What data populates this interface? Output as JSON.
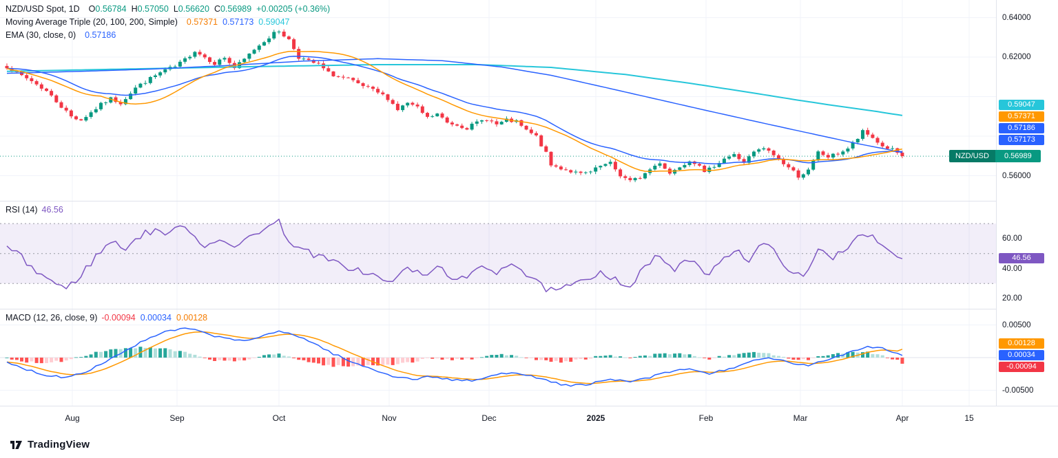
{
  "legend": {
    "price": {
      "symbol": "NZD/USD Spot, 1D",
      "o_label": "O",
      "o": "0.56784",
      "h_label": "H",
      "h": "0.57050",
      "l_label": "L",
      "l": "0.56620",
      "c_label": "C",
      "c": "0.56989",
      "change": "+0.00205 (+0.36%)",
      "ma_triple_label": "Moving Average Triple (20, 100, 200, Simple)",
      "ma20": "0.57371",
      "ma100": "0.57173",
      "ma200": "0.59047",
      "ema_label": "EMA (30, close, 0)",
      "ema": "0.57186"
    },
    "rsi": {
      "label": "RSI (14)",
      "value": "46.56"
    },
    "macd": {
      "label": "MACD (12, 26, close, 9)",
      "hist": "-0.00094",
      "macd": "0.00034",
      "signal": "0.00128"
    }
  },
  "axis": {
    "price_ticks": [
      {
        "label": "0.64000",
        "value": 0.64
      },
      {
        "label": "0.62000",
        "value": 0.62
      },
      {
        "label": "0.56000",
        "value": 0.56
      }
    ],
    "price_badges": [
      {
        "label": "0.59047",
        "color": "#26C6DA"
      },
      {
        "label": "0.57371",
        "color": "#FF9800"
      },
      {
        "label": "0.57186",
        "color": "#2962FF"
      },
      {
        "label": "0.57173",
        "color": "#2962FF"
      }
    ],
    "symbol_badge": {
      "symbol": "NZD/USD",
      "label": "0.56989",
      "color": "#089981",
      "dark": "#067A66",
      "value": 0.56989
    },
    "rsi_ticks": [
      {
        "label": "60.00",
        "value": 60
      },
      {
        "label": "40.00",
        "value": 40
      },
      {
        "label": "20.00",
        "value": 20
      }
    ],
    "rsi_badge": {
      "label": "46.56",
      "color": "#7E57C2",
      "value": 46.56
    },
    "macd_ticks": [
      {
        "label": "0.00500",
        "value": 0.005
      },
      {
        "label": "-0.00500",
        "value": -0.005
      }
    ],
    "macd_badges": [
      {
        "label": "0.00128",
        "color": "#FF9800",
        "value": 0.00128
      },
      {
        "label": "0.00034",
        "color": "#2962FF",
        "value": 0.00034
      },
      {
        "label": "-0.00094",
        "color": "#F23645",
        "value": -0.00094
      }
    ]
  },
  "time_axis": {
    "labels": [
      {
        "t": "Aug"
      },
      {
        "t": "Sep"
      },
      {
        "t": "Oct"
      },
      {
        "t": "Nov"
      },
      {
        "t": "Dec"
      },
      {
        "t": "2025",
        "major": true
      },
      {
        "t": "Feb"
      },
      {
        "t": "Mar"
      },
      {
        "t": "Apr"
      },
      {
        "t": "15"
      }
    ]
  },
  "branding": {
    "logo_text": "TradingView"
  },
  "chart_data": {
    "type": "candlestick",
    "symbol": "NZD/USD",
    "market": "Spot",
    "interval": "1D",
    "title": "NZD/USD Spot, 1D with Moving Average Triple (20,100,200), EMA 30, RSI 14, MACD (12,26,9)",
    "last_bar": {
      "open": 0.56784,
      "high": 0.5705,
      "low": 0.5662,
      "close": 0.56989,
      "change": 0.00205,
      "change_pct": 0.36
    },
    "price_pane": {
      "ylim": [
        0.548,
        0.6475
      ],
      "last_price": 0.56989,
      "num_candles": 182,
      "up_color": "#089981",
      "down_color": "#F23645",
      "price_line_color": "#089981",
      "close_anchors": [
        [
          0,
          0.6152
        ],
        [
          2,
          0.6118
        ],
        [
          5,
          0.608
        ],
        [
          8,
          0.6028
        ],
        [
          11,
          0.595
        ],
        [
          13,
          0.59
        ],
        [
          15,
          0.5882
        ],
        [
          17,
          0.592
        ],
        [
          19,
          0.596
        ],
        [
          21,
          0.599
        ],
        [
          23,
          0.5968
        ],
        [
          26,
          0.6045
        ],
        [
          29,
          0.6092
        ],
        [
          32,
          0.6135
        ],
        [
          34,
          0.615
        ],
        [
          36,
          0.6188
        ],
        [
          38,
          0.6232
        ],
        [
          40,
          0.62
        ],
        [
          42,
          0.6168
        ],
        [
          44,
          0.6198
        ],
        [
          46,
          0.6145
        ],
        [
          48,
          0.6188
        ],
        [
          50,
          0.624
        ],
        [
          52,
          0.6282
        ],
        [
          54,
          0.632
        ],
        [
          55,
          0.6332
        ],
        [
          56,
          0.631
        ],
        [
          57,
          0.6288
        ],
        [
          59,
          0.62
        ],
        [
          61,
          0.6178
        ],
        [
          63,
          0.6162
        ],
        [
          65,
          0.612
        ],
        [
          67,
          0.61
        ],
        [
          69,
          0.6088
        ],
        [
          71,
          0.6062
        ],
        [
          73,
          0.6042
        ],
        [
          75,
          0.602
        ],
        [
          77,
          0.5992
        ],
        [
          79,
          0.5935
        ],
        [
          81,
          0.5968
        ],
        [
          83,
          0.5942
        ],
        [
          85,
          0.5892
        ],
        [
          87,
          0.5912
        ],
        [
          89,
          0.5868
        ],
        [
          91,
          0.5858
        ],
        [
          93,
          0.5842
        ],
        [
          95,
          0.5868
        ],
        [
          97,
          0.5888
        ],
        [
          99,
          0.5858
        ],
        [
          101,
          0.588
        ],
        [
          103,
          0.5872
        ],
        [
          105,
          0.5828
        ],
        [
          107,
          0.5798
        ],
        [
          109,
          0.5712
        ],
        [
          110,
          0.5652
        ],
        [
          112,
          0.5638
        ],
        [
          114,
          0.5622
        ],
        [
          116,
          0.5608
        ],
        [
          118,
          0.5618
        ],
        [
          120,
          0.5648
        ],
        [
          122,
          0.5662
        ],
        [
          124,
          0.5602
        ],
        [
          126,
          0.5572
        ],
        [
          128,
          0.5592
        ],
        [
          130,
          0.5632
        ],
        [
          132,
          0.5668
        ],
        [
          134,
          0.5612
        ],
        [
          136,
          0.5648
        ],
        [
          138,
          0.5678
        ],
        [
          140,
          0.5658
        ],
        [
          141,
          0.5612
        ],
        [
          143,
          0.5652
        ],
        [
          145,
          0.5688
        ],
        [
          147,
          0.5705
        ],
        [
          149,
          0.5668
        ],
        [
          151,
          0.5718
        ],
        [
          153,
          0.5738
        ],
        [
          155,
          0.5705
        ],
        [
          157,
          0.5662
        ],
        [
          159,
          0.5622
        ],
        [
          160,
          0.5598
        ],
        [
          162,
          0.5625
        ],
        [
          164,
          0.5718
        ],
        [
          166,
          0.5695
        ],
        [
          168,
          0.5712
        ],
        [
          170,
          0.5738
        ],
        [
          172,
          0.5788
        ],
        [
          173,
          0.5822
        ],
        [
          175,
          0.5792
        ],
        [
          177,
          0.5748
        ],
        [
          179,
          0.5732
        ],
        [
          181,
          0.56989
        ]
      ],
      "overlays": [
        {
          "name": "SMA20",
          "period": 20,
          "color": "#FF9800",
          "last": 0.57371
        },
        {
          "name": "SMA100",
          "period": 100,
          "color": "#2962FF",
          "last": 0.57173,
          "anchors": [
            [
              0,
              0.6118
            ],
            [
              15,
              0.6128
            ],
            [
              30,
              0.614
            ],
            [
              45,
              0.6158
            ],
            [
              60,
              0.618
            ],
            [
              75,
              0.6192
            ],
            [
              88,
              0.6182
            ],
            [
              100,
              0.615
            ],
            [
              110,
              0.6108
            ],
            [
              120,
              0.6052
            ],
            [
              130,
              0.5995
            ],
            [
              140,
              0.5938
            ],
            [
              150,
              0.5882
            ],
            [
              158,
              0.5838
            ],
            [
              165,
              0.58
            ],
            [
              172,
              0.5762
            ],
            [
              177,
              0.5738
            ],
            [
              181,
              0.57173
            ]
          ]
        },
        {
          "name": "SMA200",
          "period": 200,
          "color": "#26C6DA",
          "last": 0.59047,
          "anchors": [
            [
              0,
              0.6128
            ],
            [
              25,
              0.614
            ],
            [
              50,
              0.6152
            ],
            [
              75,
              0.6162
            ],
            [
              95,
              0.6162
            ],
            [
              110,
              0.6148
            ],
            [
              125,
              0.6112
            ],
            [
              138,
              0.6068
            ],
            [
              150,
              0.6022
            ],
            [
              160,
              0.5982
            ],
            [
              168,
              0.5952
            ],
            [
              175,
              0.5928
            ],
            [
              181,
              0.59047
            ]
          ]
        },
        {
          "name": "EMA30",
          "period": 30,
          "color": "#2962FF",
          "last": 0.57186
        }
      ]
    },
    "rsi_pane": {
      "period": 14,
      "value": 46.56,
      "color": "#7E57C2",
      "ylim": [
        15,
        82
      ],
      "bands": [
        70,
        50,
        30
      ],
      "band_fill": "rgba(126,87,194,0.10)",
      "anchors": [
        [
          0,
          55
        ],
        [
          3,
          47
        ],
        [
          6,
          38
        ],
        [
          9,
          32
        ],
        [
          12,
          26
        ],
        [
          15,
          36
        ],
        [
          18,
          48
        ],
        [
          21,
          58
        ],
        [
          24,
          54
        ],
        [
          27,
          62
        ],
        [
          30,
          66
        ],
        [
          33,
          63
        ],
        [
          36,
          70
        ],
        [
          38,
          61
        ],
        [
          40,
          55
        ],
        [
          43,
          61
        ],
        [
          46,
          52
        ],
        [
          49,
          62
        ],
        [
          52,
          67
        ],
        [
          55,
          71
        ],
        [
          57,
          59
        ],
        [
          60,
          52
        ],
        [
          63,
          48
        ],
        [
          66,
          44
        ],
        [
          69,
          41
        ],
        [
          72,
          38
        ],
        [
          75,
          34
        ],
        [
          78,
          30
        ],
        [
          81,
          42
        ],
        [
          84,
          34
        ],
        [
          87,
          41
        ],
        [
          90,
          35
        ],
        [
          93,
          32
        ],
        [
          96,
          42
        ],
        [
          99,
          38
        ],
        [
          102,
          45
        ],
        [
          105,
          36
        ],
        [
          108,
          28
        ],
        [
          111,
          24
        ],
        [
          114,
          29
        ],
        [
          117,
          31
        ],
        [
          120,
          39
        ],
        [
          123,
          33
        ],
        [
          126,
          28
        ],
        [
          129,
          41
        ],
        [
          132,
          49
        ],
        [
          135,
          38
        ],
        [
          138,
          47
        ],
        [
          141,
          35
        ],
        [
          144,
          45
        ],
        [
          147,
          53
        ],
        [
          150,
          46
        ],
        [
          153,
          57
        ],
        [
          156,
          48
        ],
        [
          159,
          37
        ],
        [
          161,
          33
        ],
        [
          164,
          52
        ],
        [
          167,
          48
        ],
        [
          170,
          55
        ],
        [
          173,
          65
        ],
        [
          175,
          60
        ],
        [
          178,
          51
        ],
        [
          181,
          46.56
        ]
      ]
    },
    "macd_pane": {
      "params": [
        12,
        26,
        9
      ],
      "macd_last": 0.00034,
      "signal_last": 0.00128,
      "hist_last": -0.00094,
      "macd_color": "#2962FF",
      "signal_color": "#FF9800",
      "hist_colors": {
        "up_grow": "#26A69A",
        "up_fall": "#B2DFDB",
        "down_grow": "#FFCDD2",
        "down_fall": "#FF5252"
      },
      "anchors": [
        [
          0,
          -0.0008
        ],
        [
          4,
          -0.0018
        ],
        [
          8,
          -0.0027
        ],
        [
          12,
          -0.003
        ],
        [
          16,
          -0.0021
        ],
        [
          20,
          -0.0006
        ],
        [
          24,
          0.0011
        ],
        [
          28,
          0.0027
        ],
        [
          32,
          0.0039
        ],
        [
          36,
          0.0045
        ],
        [
          40,
          0.0038
        ],
        [
          44,
          0.0029
        ],
        [
          48,
          0.0026
        ],
        [
          52,
          0.0033
        ],
        [
          55,
          0.004
        ],
        [
          58,
          0.0036
        ],
        [
          62,
          0.0022
        ],
        [
          66,
          0.0006
        ],
        [
          70,
          -0.0008
        ],
        [
          74,
          -0.0018
        ],
        [
          78,
          -0.0028
        ],
        [
          82,
          -0.0033
        ],
        [
          86,
          -0.0029
        ],
        [
          90,
          -0.0034
        ],
        [
          94,
          -0.0036
        ],
        [
          98,
          -0.0028
        ],
        [
          102,
          -0.0022
        ],
        [
          106,
          -0.0027
        ],
        [
          110,
          -0.0038
        ],
        [
          114,
          -0.0043
        ],
        [
          118,
          -0.004
        ],
        [
          122,
          -0.0034
        ],
        [
          126,
          -0.0037
        ],
        [
          130,
          -0.003
        ],
        [
          134,
          -0.0022
        ],
        [
          138,
          -0.0017
        ],
        [
          142,
          -0.0025
        ],
        [
          146,
          -0.0017
        ],
        [
          150,
          -0.0007
        ],
        [
          154,
          -0.0001
        ],
        [
          158,
          -0.0007
        ],
        [
          162,
          -0.0013
        ],
        [
          166,
          -0.0003
        ],
        [
          170,
          0.0008
        ],
        [
          174,
          0.0017
        ],
        [
          177,
          0.0015
        ],
        [
          181,
          0.00034
        ]
      ]
    },
    "x_axis": {
      "tick_labels": [
        "Aug",
        "Sep",
        "Oct",
        "Nov",
        "Dec",
        "2025",
        "Feb",
        "Mar",
        "Apr",
        "15"
      ]
    }
  }
}
